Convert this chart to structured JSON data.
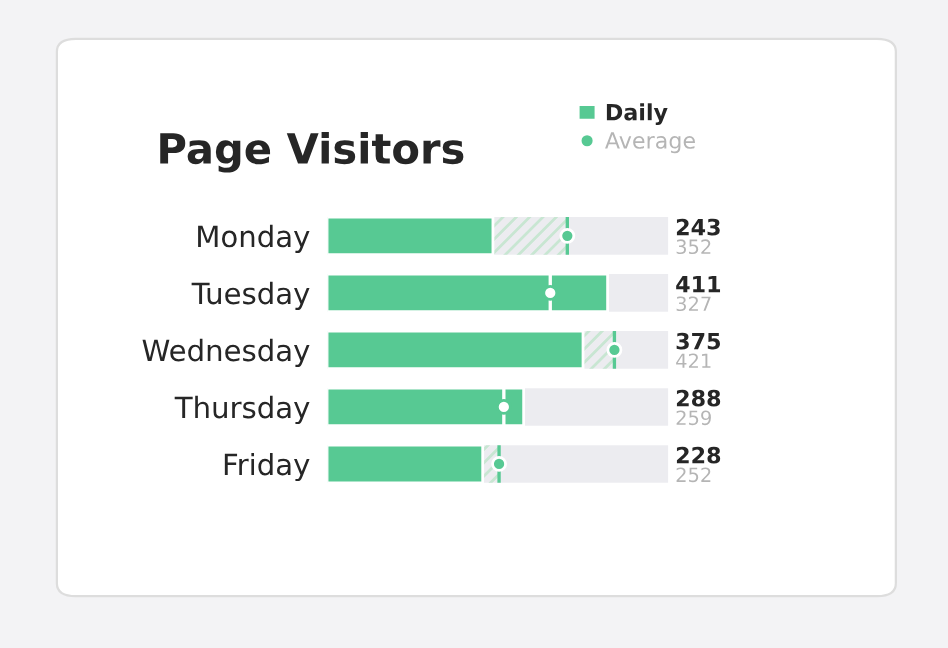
{
  "chart_data": {
    "type": "bar",
    "orientation": "horizontal",
    "title": "Page Visitors",
    "categories": [
      "Monday",
      "Tuesday",
      "Wednesday",
      "Thursday",
      "Friday"
    ],
    "xlim": [
      0,
      500
    ],
    "tick_labels": "y",
    "data_labels": true,
    "legend": "top right",
    "grid": false,
    "series": [
      {
        "name": "Daily",
        "color": "#57c993",
        "values": [
          243,
          411,
          375,
          288,
          228
        ]
      },
      {
        "name": "Average",
        "type": "scatter",
        "marker": "circle",
        "color": "#57c993",
        "values": [
          352,
          327,
          421,
          259,
          252
        ]
      }
    ]
  }
}
